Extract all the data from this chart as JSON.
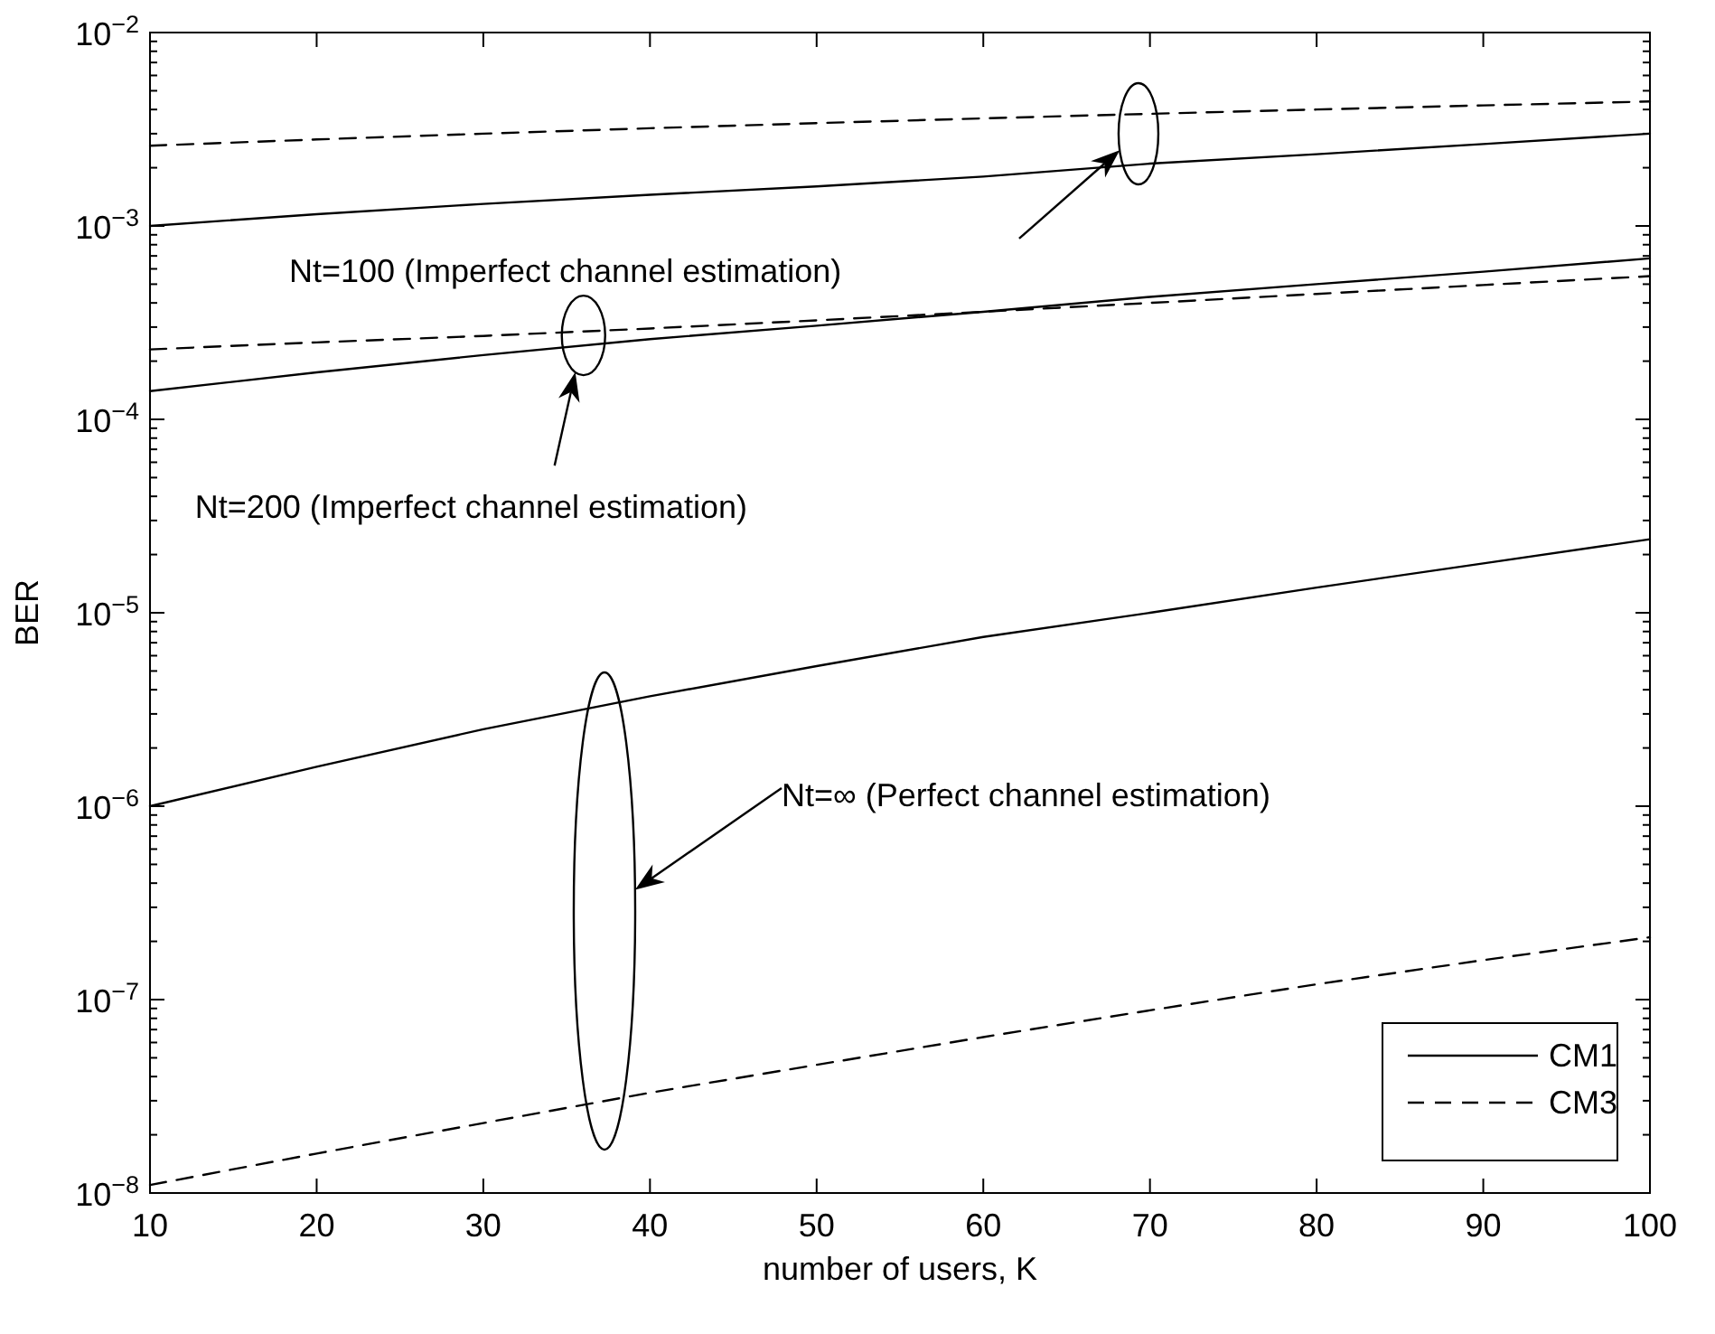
{
  "chart_data": {
    "type": "line",
    "xlabel": "number of users, K",
    "ylabel": "BER",
    "log": "y",
    "grid": false,
    "legend": "bottom right",
    "x": [
      10,
      20,
      30,
      40,
      50,
      60,
      70,
      80,
      90,
      100
    ],
    "xlim": [
      10,
      100
    ],
    "xticks": [
      10,
      20,
      30,
      40,
      50,
      60,
      70,
      80,
      90,
      100
    ],
    "ylim": [
      1e-08,
      0.01
    ],
    "yticks": [
      {
        "value": 1e-08,
        "label": "10$^{−8}$"
      },
      {
        "value": 1e-07,
        "label": "10$^{−7}$"
      },
      {
        "value": 1e-06,
        "label": "10$^{−6}$"
      },
      {
        "value": 1e-05,
        "label": "10$^{−5}$"
      },
      {
        "value": 0.0001,
        "label": "10$^{−4}$"
      },
      {
        "value": 0.001,
        "label": "10$^{−3}$"
      },
      {
        "value": 0.01,
        "label": "10$^{−2}$"
      }
    ],
    "series": [
      {
        "name": "CM1",
        "color": "#000000",
        "line_style": "solid",
        "values": [
          0.001,
          0.00115,
          0.0013,
          0.00145,
          0.0016,
          0.0018,
          0.0021,
          0.00235,
          0.00265,
          0.003
        ]
      },
      {
        "name": "CM3",
        "color": "#000000",
        "line_style": "dashed",
        "values": [
          0.0026,
          0.0028,
          0.003,
          0.0032,
          0.0034,
          0.0036,
          0.0038,
          0.004,
          0.0042,
          0.0044
        ]
      },
      {
        "color": "#000000",
        "line_style": "solid",
        "values": [
          0.00014,
          0.000175,
          0.000215,
          0.00026,
          0.000305,
          0.00036,
          0.00043,
          0.0005,
          0.00058,
          0.00068
        ]
      },
      {
        "color": "#000000",
        "line_style": "dashed",
        "values": [
          0.00023,
          0.00025,
          0.00027,
          0.000295,
          0.000325,
          0.00036,
          0.0004,
          0.000445,
          0.000495,
          0.00055
        ]
      },
      {
        "color": "#000000",
        "line_style": "solid",
        "values": [
          1e-06,
          1.6e-06,
          2.5e-06,
          3.7e-06,
          5.3e-06,
          7.5e-06,
          1e-05,
          1.35e-05,
          1.8e-05,
          2.4e-05
        ]
      },
      {
        "color": "#000000",
        "line_style": "dashed",
        "values": [
          1.1e-08,
          1.6e-08,
          2.3e-08,
          3.3e-08,
          4.6e-08,
          6.4e-08,
          8.8e-08,
          1.2e-07,
          1.6e-07,
          2.1e-07
        ]
      }
    ],
    "annotations": [
      "Nt=100 (Imperfect channel estimation)",
      "Nt=200 (Imperfect channel estimation)",
      "Nt=∞ (Perfect channel estimation)"
    ]
  }
}
